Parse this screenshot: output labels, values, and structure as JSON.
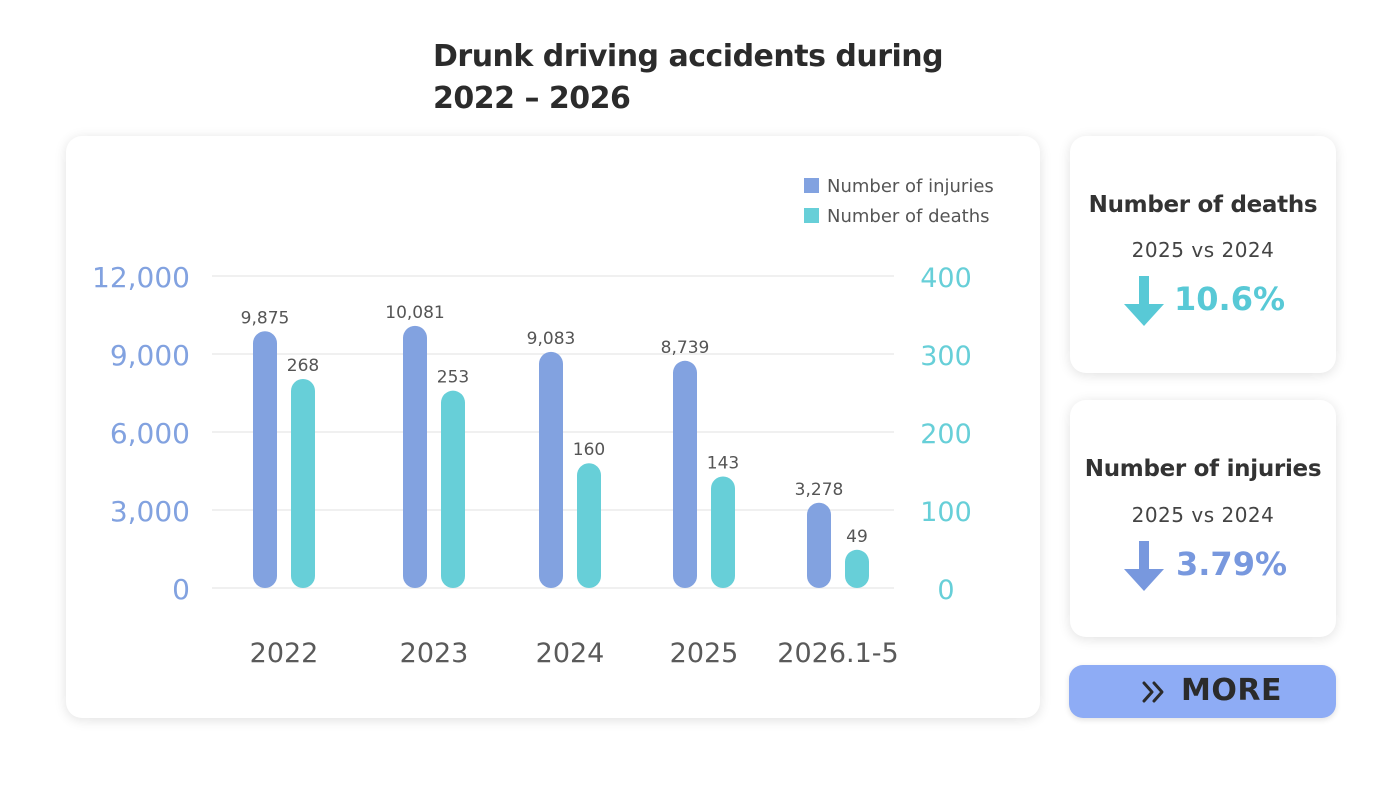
{
  "header": {
    "title_line1": "Drunk driving accidents during",
    "title_line2": "2022 – 2026"
  },
  "colors": {
    "injuries": "#82a2e0",
    "deaths": "#67cfd8",
    "grid": "#e8e8e8",
    "more_button": "#8eacf5"
  },
  "chart_data": {
    "type": "bar",
    "categories": [
      "2022",
      "2023",
      "2024",
      "2025",
      "2026.1-5"
    ],
    "series": [
      {
        "name": "Number of injuries",
        "axis": "left",
        "color": "#82a2e0",
        "values": [
          9875,
          10081,
          9083,
          8739,
          3278
        ],
        "labels": [
          "9,875",
          "10,081",
          "9,083",
          "8,739",
          "3,278"
        ]
      },
      {
        "name": "Number  of deaths",
        "axis": "right",
        "color": "#67cfd8",
        "values": [
          268,
          253,
          160,
          143,
          49
        ],
        "labels": [
          "268",
          "253",
          "160",
          "143",
          "49"
        ]
      }
    ],
    "y_left": {
      "range": [
        0,
        12000
      ],
      "ticks": [
        0,
        3000,
        6000,
        9000,
        12000
      ],
      "tick_labels": [
        "0",
        "3,000",
        "6,000",
        "9,000",
        "12,000"
      ]
    },
    "y_right": {
      "range": [
        0,
        400
      ],
      "ticks": [
        0,
        100,
        200,
        300,
        400
      ],
      "tick_labels": [
        "0",
        "100",
        "200",
        "300",
        "400"
      ]
    },
    "grid": true,
    "legend_position": "top-right"
  },
  "stats": {
    "deaths": {
      "title": "Number  of deaths",
      "comparison": "2025  vs  2024",
      "direction": "down",
      "arrow_icon": "arrow-down-icon",
      "change": "10.6%",
      "color": "#58c9d6"
    },
    "injuries": {
      "title": "Number of injuries",
      "comparison": "2025  vs  2024",
      "direction": "down",
      "arrow_icon": "arrow-down-icon",
      "change": "3.79%",
      "color": "#7898de"
    }
  },
  "more_button": {
    "label": "MORE",
    "icon": "double-chevron-right-icon"
  }
}
